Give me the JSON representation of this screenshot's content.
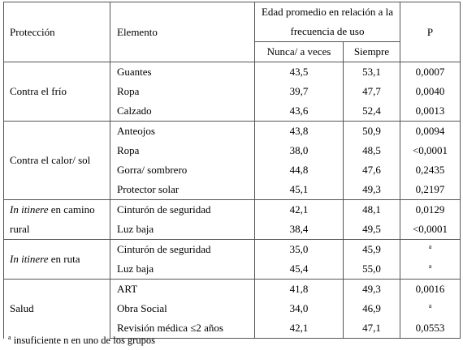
{
  "table": {
    "header": {
      "protection": "Protección",
      "element": "Elemento",
      "age_group": "Edad promedio en relación a la frecuencia de uso",
      "never": "Nunca/ a veces",
      "always": "Siempre",
      "p": "P"
    },
    "groups": [
      {
        "protection": "Contra el frío",
        "rows": [
          {
            "element": "Guantes",
            "never": "43,5",
            "always": "53,1",
            "p": "0,0007"
          },
          {
            "element": "Ropa",
            "never": "39,7",
            "always": "47,7",
            "p": "0,0040"
          },
          {
            "element": "Calzado",
            "never": "43,6",
            "always": "52,4",
            "p": "0,0013"
          }
        ]
      },
      {
        "protection": "Contra el calor/ sol",
        "rows": [
          {
            "element": "Anteojos",
            "never": "43,8",
            "always": "50,9",
            "p": "0,0094"
          },
          {
            "element": "Ropa",
            "never": "38,0",
            "always": "48,5",
            "p": "<0,0001"
          },
          {
            "element": "Gorra/ sombrero",
            "never": "44,8",
            "always": "47,6",
            "p": "0,2435"
          },
          {
            "element": "Protector solar",
            "never": "45,1",
            "always": "49,3",
            "p": "0,2197"
          }
        ]
      },
      {
        "protection_italic": "In itinere",
        "protection": "en camino rural",
        "rows": [
          {
            "element": "Cinturón de seguridad",
            "never": "42,1",
            "always": "48,1",
            "p": "0,0129"
          },
          {
            "element": "Luz baja",
            "never": "38,4",
            "always": "49,5",
            "p": "<0,0001"
          }
        ]
      },
      {
        "protection_italic": "In itinere",
        "protection": "en ruta",
        "rows": [
          {
            "element": "Cinturón de seguridad",
            "never": "35,0",
            "always": "45,9",
            "p_superscript": "a"
          },
          {
            "element": "Luz baja",
            "never": "45,4",
            "always": "55,0",
            "p_superscript": "a"
          }
        ]
      },
      {
        "protection": "Salud",
        "rows": [
          {
            "element": "ART",
            "never": "41,8",
            "always": "49,3",
            "p": "0,0016"
          },
          {
            "element": "Obra Social",
            "never": "34,0",
            "always": "46,9",
            "p_superscript": "a"
          },
          {
            "element": "Revisión médica ≤2 años",
            "never": "42,1",
            "always": "47,1",
            "p": "0,0553"
          }
        ]
      }
    ],
    "footnote": {
      "mark": "a",
      "text": "insuficiente n en uno de los grupos"
    }
  }
}
